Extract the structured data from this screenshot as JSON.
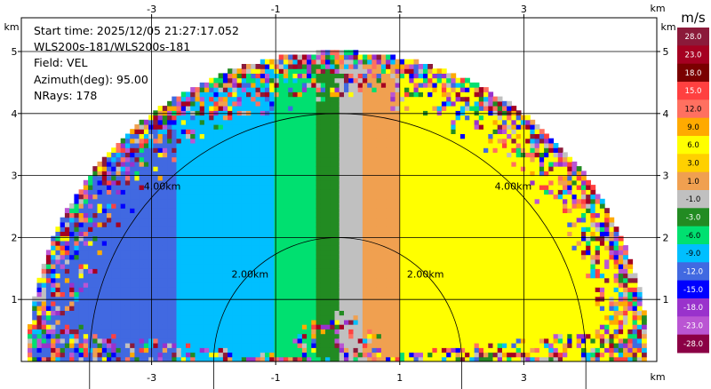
{
  "info": {
    "start_time": "Start time: 2025/12/05 21:27:17.052",
    "site": "WLS200s-181/WLS200s-181",
    "field": "Field: VEL",
    "azimuth": "Azimuth(deg): 95.00",
    "nrays": "NRays: 178"
  },
  "axis": {
    "x_unit": "km",
    "y_unit": "km",
    "x_ticks": [
      "-3",
      "-1",
      "1",
      "3"
    ],
    "x_tick_values": [
      -3,
      -1,
      1,
      3
    ],
    "y_ticks": [
      "1",
      "2",
      "3",
      "4",
      "5"
    ],
    "y_tick_values": [
      1,
      2,
      3,
      4,
      5
    ]
  },
  "rings": [
    {
      "label": "2.00km",
      "radius_km": 2
    },
    {
      "label": "4.00km",
      "radius_km": 4
    }
  ],
  "colorbar": {
    "unit": "m/s",
    "labels": [
      "28.0",
      "23.0",
      "18.0",
      "15.0",
      "12.0",
      "9.0",
      "6.0",
      "3.0",
      "1.0",
      "-1.0",
      "-3.0",
      "-6.0",
      "-9.0",
      "-12.0",
      "-15.0",
      "-18.0",
      "-23.0",
      "-28.0"
    ],
    "colors": [
      "#8b1a3a",
      "#a50021",
      "#7a0000",
      "#ff4040",
      "#ff7060",
      "#ffaa00",
      "#ffff00",
      "#ffd000",
      "#f0a050",
      "#c0c0c0",
      "#228b22",
      "#00e070",
      "#00bfff",
      "#4169e1",
      "#0000ff",
      "#9932cc",
      "#ba55d3",
      "#8b0045"
    ]
  },
  "chart_data": {
    "type": "heatmap",
    "description_field": "VEL",
    "xlim": [
      -5.0,
      5.0
    ],
    "ylim": [
      0,
      5.5
    ],
    "max_range_km": 5.0,
    "sectors": [
      {
        "x_from": -5.0,
        "x_to": -2.6,
        "value": -12.0
      },
      {
        "x_from": -2.6,
        "x_to": -1.0,
        "value": -9.0
      },
      {
        "x_from": -1.0,
        "x_to": -0.35,
        "value": -6.0
      },
      {
        "x_from": -0.35,
        "x_to": 0.0,
        "value": -3.0
      },
      {
        "x_from": 0.0,
        "x_to": 0.4,
        "value": -1.0
      },
      {
        "x_from": 0.4,
        "x_to": 1.0,
        "value": 1.0
      },
      {
        "x_from": 1.0,
        "x_to": 5.0,
        "value": 6.0
      }
    ]
  }
}
